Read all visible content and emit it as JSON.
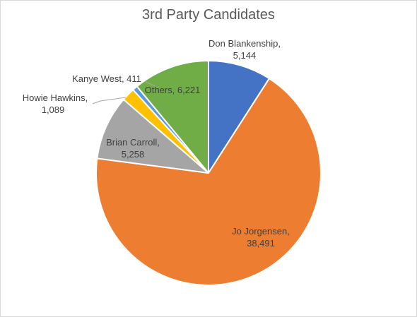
{
  "chart_data": {
    "type": "pie",
    "title": "3rd Party Candidates",
    "slices": [
      {
        "label": "Don Blankenship",
        "value": 5144,
        "display": "5,144",
        "color": "#4472c4"
      },
      {
        "label": "Jo Jorgensen",
        "value": 38491,
        "display": "38,491",
        "color": "#ed7d31"
      },
      {
        "label": "Brian Carroll",
        "value": 5258,
        "display": "5,258",
        "color": "#a5a5a5"
      },
      {
        "label": "Howie Hawkins",
        "value": 1089,
        "display": "1,089",
        "color": "#ffc000"
      },
      {
        "label": "Kanye West",
        "value": 411,
        "display": "411",
        "color": "#5b9bd5"
      },
      {
        "label": "Others",
        "value": 6221,
        "display": "6,221",
        "color": "#70ad47"
      }
    ],
    "start_angle": "12 o'clock, clockwise",
    "legend": "none (data labels with category name and value)"
  }
}
